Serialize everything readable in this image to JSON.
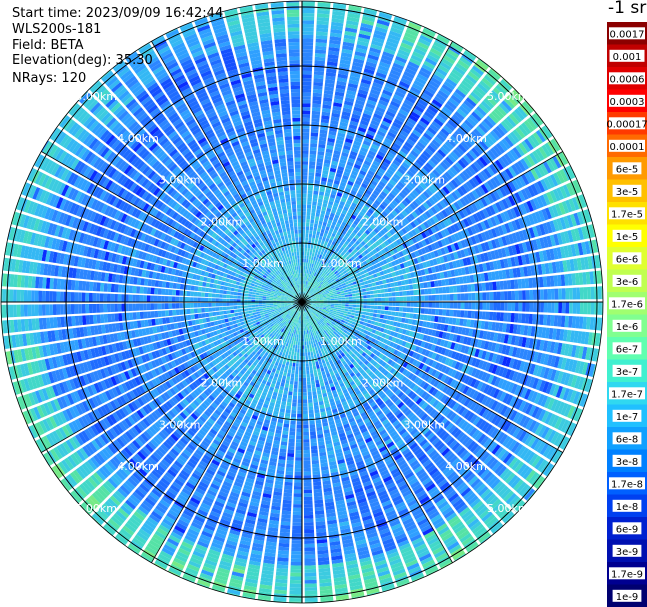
{
  "header": {
    "start_time": "Start time: 2023/09/09 16:42:44",
    "instrument": "WLS200s-181",
    "field": "Field: BETA",
    "elevation": "Elevation(deg): 35.30",
    "nrays": "NRays: 120"
  },
  "chart_data": {
    "type": "heatmap",
    "projection": "polar-ppi",
    "field": "BETA",
    "elevation_deg": 35.3,
    "n_rays": 120,
    "range_rings_km": [
      1,
      2,
      3,
      4,
      5
    ],
    "ring_labels": [
      "1.00km",
      "2.00km",
      "3.00km",
      "4.00km",
      "5.00km"
    ],
    "spokes_deg": [
      0,
      30,
      60,
      90,
      120,
      150,
      180,
      210,
      240,
      270,
      300,
      330
    ],
    "max_range_km": 5.0,
    "colorbar": {
      "unit_label": "-1 sr",
      "ticks": [
        "0.0017",
        "0.001",
        "0.0006",
        "0.0003",
        "0.00017",
        "0.0001",
        "6e-5",
        "3e-5",
        "1.7e-5",
        "1e-5",
        "6e-6",
        "3e-6",
        "1.7e-6",
        "1e-6",
        "6e-7",
        "3e-7",
        "1.7e-7",
        "1e-7",
        "6e-8",
        "3e-8",
        "1.7e-8",
        "1e-8",
        "6e-9",
        "3e-9",
        "1.7e-9",
        "1e-9"
      ],
      "colors": [
        "#8b0000",
        "#c00000",
        "#e00000",
        "#ff0000",
        "#ff3a00",
        "#ff6a00",
        "#ff9a00",
        "#ffc000",
        "#ffe000",
        "#ffff00",
        "#e0ff30",
        "#c0ff50",
        "#a0ff70",
        "#80ff90",
        "#60ffb0",
        "#40f0d0",
        "#30d8f0",
        "#20c0ff",
        "#10a0ff",
        "#0080ff",
        "#0060ff",
        "#0040f0",
        "#0020d0",
        "#0010b0",
        "#000090",
        "#000070"
      ]
    }
  }
}
